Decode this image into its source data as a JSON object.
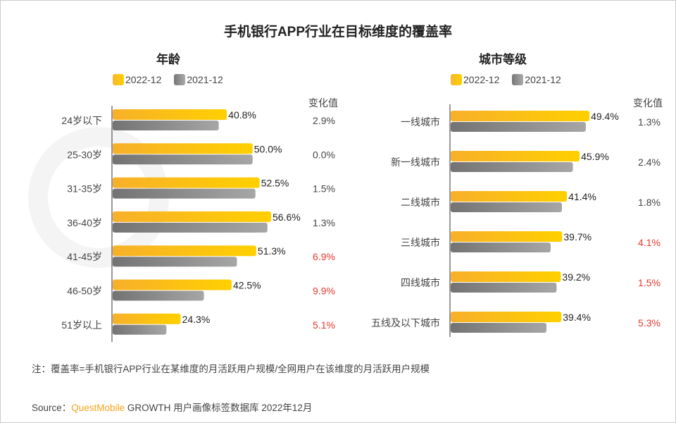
{
  "title": "手机银行APP行业在目标维度的覆盖率",
  "watermark": "QUESTMOBILE",
  "legend": [
    "2022-12",
    "2021-12"
  ],
  "change_header": "变化值",
  "colors": {
    "current": "#ffc800",
    "previous": "#8c8c8c",
    "increase_text": "#e8382f",
    "normal_text": "#444444"
  },
  "chart_data": [
    {
      "type": "bar",
      "orientation": "horizontal",
      "title": "年龄",
      "categories": [
        "24岁以下",
        "25-30岁",
        "31-35岁",
        "36-40岁",
        "41-45岁",
        "46-50岁",
        "51岁以上"
      ],
      "series": [
        {
          "name": "2022-12",
          "values": [
            40.8,
            50.0,
            52.5,
            56.6,
            51.3,
            42.5,
            24.3
          ],
          "labels": [
            "40.8%",
            "50.0%",
            "52.5%",
            "56.6%",
            "51.3%",
            "42.5%",
            "24.3%"
          ]
        },
        {
          "name": "2021-12",
          "values": [
            37.9,
            50.0,
            51.0,
            55.3,
            44.4,
            32.6,
            19.2
          ]
        }
      ],
      "change": [
        "2.9%",
        "0.0%",
        "1.5%",
        "1.3%",
        "6.9%",
        "9.9%",
        "5.1%"
      ],
      "change_highlight": [
        false,
        false,
        false,
        false,
        true,
        true,
        true
      ]
    },
    {
      "type": "bar",
      "orientation": "horizontal",
      "title": "城市等级",
      "categories": [
        "一线城市",
        "新一线城市",
        "二线城市",
        "三线城市",
        "四线城市",
        "五线及以下城市"
      ],
      "series": [
        {
          "name": "2022-12",
          "values": [
            49.4,
            45.9,
            41.4,
            39.7,
            39.2,
            39.4
          ],
          "labels": [
            "49.4%",
            "45.9%",
            "41.4%",
            "39.7%",
            "39.2%",
            "39.4%"
          ]
        },
        {
          "name": "2021-12",
          "values": [
            48.1,
            43.5,
            39.6,
            35.6,
            37.7,
            34.1
          ]
        }
      ],
      "change": [
        "1.3%",
        "2.4%",
        "1.8%",
        "4.1%",
        "1.5%",
        "5.3%"
      ],
      "change_highlight": [
        false,
        false,
        false,
        true,
        true,
        true
      ]
    }
  ],
  "note": "注：覆盖率=手机银行APP行业在某维度的月活跃用户规模/全网用户在该维度的月活跃用户规模",
  "source": {
    "prefix": "Source：",
    "brand": "QuestMobile",
    "rest": " GROWTH 用户画像标签数据库 2022年12月"
  }
}
